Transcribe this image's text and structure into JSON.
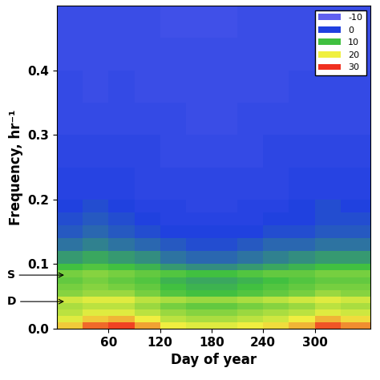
{
  "chart_data": {
    "type": "heatmap",
    "xlabel": "Day of year",
    "ylabel": "Frequency, hr⁻¹",
    "x_edges": [
      0,
      30,
      60,
      90,
      120,
      150,
      180,
      210,
      240,
      270,
      300,
      330,
      365
    ],
    "y_edges": [
      0.0,
      0.01,
      0.02,
      0.03,
      0.04,
      0.05,
      0.06,
      0.07,
      0.08,
      0.09,
      0.1,
      0.12,
      0.14,
      0.16,
      0.18,
      0.2,
      0.25,
      0.3,
      0.35,
      0.4,
      0.45,
      0.5
    ],
    "cells": [
      [
        22,
        27,
        29,
        24,
        20,
        19,
        19,
        20,
        21,
        23,
        28,
        25
      ],
      [
        19,
        22,
        23,
        20,
        17,
        16,
        16,
        17,
        18,
        20,
        23,
        21
      ],
      [
        17,
        19,
        19,
        17,
        15,
        14,
        14,
        15,
        16,
        17,
        19,
        18
      ],
      [
        16,
        17,
        17,
        15,
        13,
        12,
        12,
        13,
        14,
        15,
        17,
        16
      ],
      [
        18,
        19,
        19,
        17,
        16,
        15,
        15,
        16,
        17,
        18,
        19,
        18
      ],
      [
        14,
        15,
        15,
        13,
        11,
        10,
        10,
        11,
        12,
        13,
        15,
        14
      ],
      [
        13,
        14,
        13,
        12,
        10,
        9,
        9,
        10,
        11,
        12,
        13,
        13
      ],
      [
        12,
        13,
        12,
        11,
        9,
        8,
        8,
        9,
        10,
        11,
        12,
        12
      ],
      [
        13,
        14,
        13,
        12,
        11,
        10,
        10,
        11,
        12,
        12,
        13,
        13
      ],
      [
        10,
        11,
        10,
        9,
        7,
        6,
        6,
        7,
        8,
        9,
        10,
        10
      ],
      [
        7,
        8,
        7,
        6,
        4,
        3,
        3,
        4,
        5,
        6,
        7,
        7
      ],
      [
        4,
        5,
        4,
        3,
        2,
        1,
        1,
        2,
        3,
        3,
        4,
        4
      ],
      [
        2,
        3,
        2,
        1,
        0,
        0,
        0,
        0,
        1,
        1,
        2,
        2
      ],
      [
        1,
        2,
        1,
        0,
        -1,
        -1,
        -1,
        -1,
        0,
        0,
        1,
        1
      ],
      [
        0,
        1,
        0,
        -1,
        -1,
        -2,
        -2,
        -1,
        -1,
        0,
        1,
        0
      ],
      [
        -1,
        -1,
        -1,
        -2,
        -2,
        -2,
        -2,
        -2,
        -2,
        -1,
        -1,
        -1
      ],
      [
        -2,
        -2,
        -2,
        -2,
        -3,
        -3,
        -3,
        -3,
        -2,
        -2,
        -2,
        -2
      ],
      [
        -3,
        -3,
        -3,
        -3,
        -3,
        -4,
        -4,
        -3,
        -3,
        -3,
        -3,
        -3
      ],
      [
        -3,
        -4,
        -3,
        -4,
        -4,
        -4,
        -4,
        -4,
        -4,
        -3,
        -3,
        -3
      ],
      [
        -4,
        -4,
        -4,
        -4,
        -4,
        -4,
        -4,
        -4,
        -4,
        -4,
        -4,
        -4
      ],
      [
        -4,
        -4,
        -4,
        -4,
        -5,
        -5,
        -5,
        -4,
        -4,
        -4,
        -4,
        -4
      ]
    ],
    "xlim": [
      0,
      365
    ],
    "ylim": [
      0,
      0.5
    ],
    "xticks": [
      60,
      120,
      180,
      240,
      300
    ],
    "yticks": [
      0.0,
      0.1,
      0.2,
      0.3,
      0.4
    ],
    "color_levels": [
      -10,
      0,
      10,
      20,
      30
    ],
    "colors": [
      "#6060f0",
      "#2040e0",
      "#40c040",
      "#f0f040",
      "#f03020"
    ],
    "legend": "upper right",
    "annotations": [
      {
        "text": "S",
        "y": 0.083
      },
      {
        "text": "D",
        "y": 0.042
      }
    ]
  }
}
